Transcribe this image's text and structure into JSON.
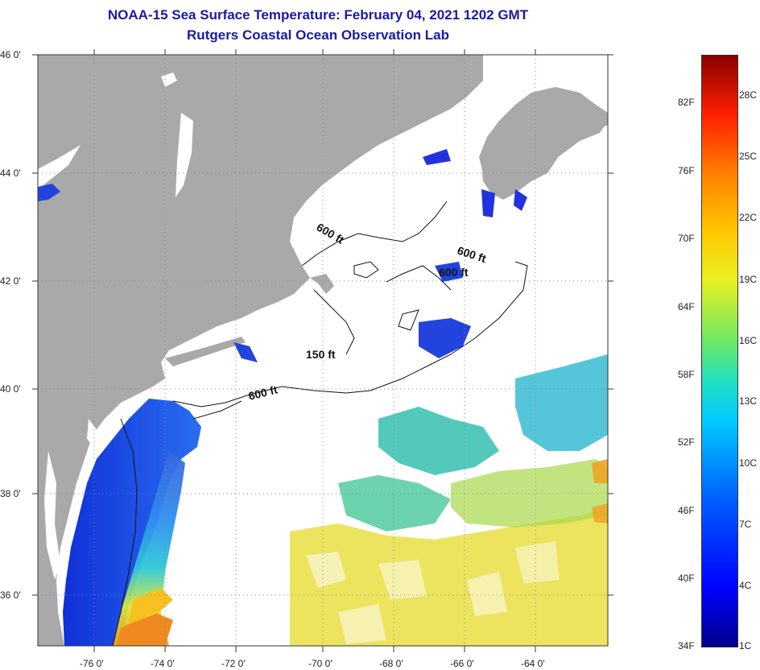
{
  "title_line1": "NOAA-15 Sea Surface Temperature:  February 04, 2021 1202 GMT",
  "title_line2": "Rutgers Coastal Ocean Observation Lab",
  "lat_labels": [
    "46 0'",
    "44 0'",
    "42 0'",
    "40 0'",
    "38 0'",
    "36 0'"
  ],
  "lon_labels": [
    "-76 0'",
    "-74 0'",
    "-72 0'",
    "-70 0'",
    "-68 0'",
    "-66 0'",
    "-64 0'"
  ],
  "contours": {
    "label_600_a": "600 ft",
    "label_600_b": "600 ft",
    "label_600_c": "600 ft",
    "label_150": "150 ft",
    "label_600_d": "600 ft"
  },
  "colorbar": {
    "f_labels": [
      "82F",
      "76F",
      "70F",
      "64F",
      "58F",
      "52F",
      "46F",
      "40F",
      "34F"
    ],
    "c_labels": [
      "28C",
      "25C",
      "22C",
      "19C",
      "16C",
      "13C",
      "10C",
      "7C",
      "4C",
      "1C"
    ]
  },
  "colors": {
    "land": "#a9a9a9",
    "ocean_nodata": "#ffffff",
    "title": "#1a1aa6"
  }
}
